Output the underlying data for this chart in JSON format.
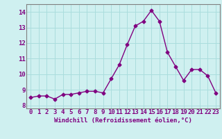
{
  "x": [
    0,
    1,
    2,
    3,
    4,
    5,
    6,
    7,
    8,
    9,
    10,
    11,
    12,
    13,
    14,
    15,
    16,
    17,
    18,
    19,
    20,
    21,
    22,
    23
  ],
  "y": [
    8.5,
    8.6,
    8.6,
    8.4,
    8.7,
    8.7,
    8.8,
    8.9,
    8.9,
    8.8,
    9.7,
    10.6,
    11.9,
    13.1,
    13.4,
    14.1,
    13.4,
    11.4,
    10.5,
    9.6,
    10.3,
    10.3,
    9.9,
    8.8
  ],
  "line_color": "#800080",
  "marker": "D",
  "marker_size": 2.5,
  "bg_color": "#cff0f0",
  "grid_color": "#aadddd",
  "xlabel": "Windchill (Refroidissement éolien,°C)",
  "ylabel_ticks": [
    8,
    9,
    10,
    11,
    12,
    13,
    14
  ],
  "xlabel_ticks": [
    0,
    1,
    2,
    3,
    4,
    5,
    6,
    7,
    8,
    9,
    10,
    11,
    12,
    13,
    14,
    15,
    16,
    17,
    18,
    19,
    20,
    21,
    22,
    23
  ],
  "ylim": [
    7.8,
    14.5
  ],
  "xlim": [
    -0.5,
    23.5
  ],
  "tick_label_color": "#800080",
  "spine_color": "#808080",
  "xlabel_fontsize": 6.5,
  "tick_fontsize": 6.5,
  "linewidth": 1.0
}
